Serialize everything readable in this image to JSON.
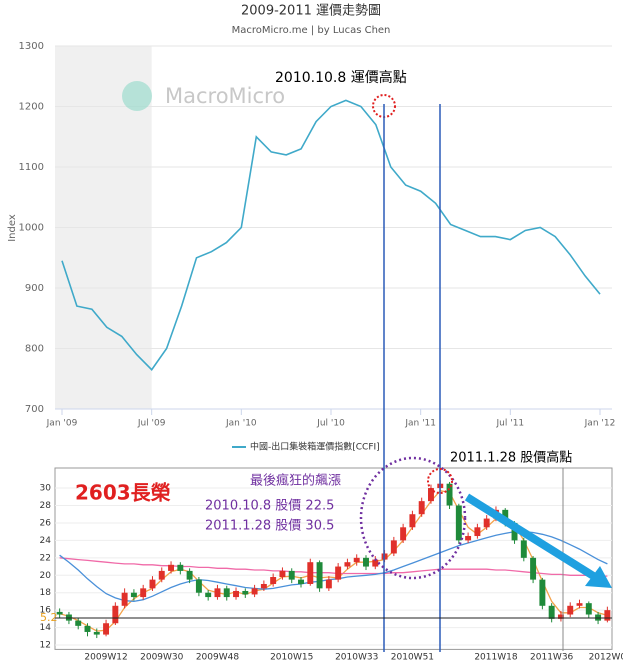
{
  "chart_data": [
    {
      "type": "line",
      "title": "2009-2011 運價走勢圖",
      "subtitle": "MacroMicro.me | by Lucas Chen",
      "watermark": "MacroMicro",
      "y_label": "Index",
      "annotation": "2010.10.8 運價高點",
      "x": [
        "2009-01",
        "2009-02",
        "2009-03",
        "2009-04",
        "2009-05",
        "2009-06",
        "2009-07",
        "2009-08",
        "2009-09",
        "2009-10",
        "2009-11",
        "2009-12",
        "2010-01",
        "2010-02",
        "2010-03",
        "2010-04",
        "2010-05",
        "2010-06",
        "2010-07",
        "2010-08",
        "2010-09",
        "2010-10",
        "2010-11",
        "2010-12",
        "2011-01",
        "2011-02",
        "2011-03",
        "2011-04",
        "2011-05",
        "2011-06",
        "2011-07",
        "2011-08",
        "2011-09",
        "2011-10",
        "2011-11",
        "2011-12",
        "2012-01"
      ],
      "series": [
        {
          "name": "中國-出口集裝箱運價指數[CCFI]",
          "color": "#3fa9c9",
          "values": [
            945,
            870,
            865,
            835,
            820,
            790,
            765,
            800,
            870,
            950,
            960,
            975,
            1000,
            1150,
            1125,
            1120,
            1130,
            1175,
            1200,
            1210,
            1200,
            1170,
            1100,
            1070,
            1060,
            1040,
            1005,
            995,
            985,
            985,
            980,
            995,
            1000,
            985,
            955,
            920,
            890
          ]
        }
      ],
      "xlim": [
        "2009-01",
        "2012-01"
      ],
      "xticks": [
        {
          "value": "2009-01",
          "label": "Jan '09"
        },
        {
          "value": "2009-07",
          "label": "Jul '09"
        },
        {
          "value": "2010-01",
          "label": "Jan '10"
        },
        {
          "value": "2010-07",
          "label": "Jul '10"
        },
        {
          "value": "2011-01",
          "label": "Jan '11"
        },
        {
          "value": "2011-07",
          "label": "Jul '11"
        },
        {
          "value": "2012-01",
          "label": "Jan '12"
        }
      ],
      "ylim": [
        700,
        1300
      ],
      "yticks": [
        700,
        800,
        900,
        1000,
        1100,
        1200,
        1300
      ],
      "grid": true,
      "plot_band": {
        "from": "2009-01",
        "to": "2009-07",
        "color": "#f0f0f0"
      },
      "legend": "bottom"
    },
    {
      "type": "candlestick",
      "title": "2603長榮",
      "annotations": [
        "最後瘋狂的飆漲",
        "2010.10.8 股價 22.5",
        "2011.1.28 股價 30.5",
        "2011.1.28 股價高點"
      ],
      "ref_label": "5.2",
      "categories": [
        null,
        null,
        null,
        null,
        null,
        "2009W12",
        null,
        null,
        null,
        null,
        null,
        "2009W30",
        null,
        null,
        null,
        null,
        null,
        "2009W48",
        null,
        null,
        null,
        null,
        null,
        null,
        null,
        "2010W15",
        null,
        null,
        null,
        null,
        null,
        null,
        "2010W33",
        null,
        null,
        null,
        null,
        null,
        "2010W51",
        null,
        null,
        null,
        null,
        null,
        null,
        null,
        null,
        "2011W18",
        null,
        null,
        null,
        null,
        null,
        "2011W36",
        null,
        null,
        null,
        null,
        null,
        "2012W0"
      ],
      "open": [
        15.8,
        15.5,
        14.8,
        14.2,
        13.5,
        13.2,
        14.5,
        16.5,
        18.0,
        17.5,
        18.5,
        19.5,
        20.5,
        21.2,
        20.5,
        19.5,
        18.0,
        17.5,
        18.5,
        17.5,
        18.2,
        17.8,
        18.5,
        19.0,
        19.8,
        20.5,
        19.5,
        19.0,
        21.5,
        18.5,
        19.5,
        21.0,
        21.5,
        22.0,
        21.0,
        21.8,
        22.5,
        24.0,
        25.5,
        27.0,
        28.5,
        30.0,
        30.5,
        28.0,
        24.0,
        24.5,
        25.5,
        26.5,
        27.5,
        26.0,
        24.0,
        22.0,
        19.5,
        16.5,
        15.0,
        15.5,
        16.5,
        16.8,
        15.5,
        14.8
      ],
      "high": [
        16.2,
        15.8,
        15.1,
        14.5,
        13.9,
        14.9,
        16.9,
        18.5,
        18.4,
        18.9,
        19.9,
        20.9,
        21.6,
        21.5,
        20.8,
        19.8,
        18.3,
        18.9,
        18.8,
        18.6,
        18.5,
        18.9,
        19.4,
        20.2,
        20.9,
        20.8,
        19.8,
        21.9,
        21.7,
        19.9,
        21.4,
        21.9,
        22.4,
        22.3,
        22.2,
        22.9,
        24.4,
        25.9,
        27.4,
        28.9,
        30.4,
        30.9,
        30.7,
        28.2,
        24.9,
        25.9,
        26.9,
        27.9,
        27.7,
        26.2,
        24.3,
        22.2,
        19.7,
        16.8,
        15.9,
        16.9,
        17.2,
        17.0,
        15.8,
        16.4
      ],
      "low": [
        15.1,
        14.4,
        13.8,
        13.0,
        12.8,
        13.0,
        14.3,
        16.2,
        17.1,
        17.2,
        18.2,
        19.2,
        20.2,
        20.1,
        19.1,
        17.6,
        17.1,
        17.2,
        17.1,
        17.2,
        17.4,
        17.5,
        18.2,
        18.7,
        19.5,
        19.1,
        18.6,
        18.8,
        18.1,
        18.2,
        19.2,
        20.7,
        21.1,
        20.6,
        20.7,
        21.5,
        22.2,
        23.7,
        25.2,
        26.7,
        28.2,
        29.6,
        27.6,
        23.6,
        23.7,
        24.2,
        25.2,
        26.2,
        25.6,
        23.6,
        21.6,
        19.1,
        16.1,
        14.6,
        14.7,
        15.2,
        16.2,
        15.1,
        14.4,
        14.6
      ],
      "close": [
        15.5,
        14.8,
        14.2,
        13.5,
        13.2,
        14.5,
        16.5,
        18.0,
        17.5,
        18.5,
        19.5,
        20.5,
        21.2,
        20.5,
        19.5,
        18.0,
        17.5,
        18.5,
        17.5,
        18.2,
        17.8,
        18.5,
        19.0,
        19.8,
        20.5,
        19.5,
        19.0,
        21.5,
        18.5,
        19.5,
        21.0,
        21.5,
        22.0,
        21.0,
        21.8,
        22.5,
        24.0,
        25.5,
        27.0,
        28.5,
        30.0,
        30.5,
        28.0,
        24.0,
        24.5,
        25.5,
        26.5,
        27.5,
        26.0,
        24.0,
        22.0,
        19.5,
        16.5,
        15.0,
        15.5,
        16.5,
        16.8,
        15.5,
        14.8,
        16.0
      ],
      "up_color": "#e0302a",
      "down_color": "#1f8a3a",
      "series": [
        {
          "color": "#f4a24a",
          "values": [
            15.6,
            15.3,
            14.8,
            14.2,
            13.6,
            13.7,
            14.7,
            16.3,
            17.3,
            18.0,
            18.5,
            19.5,
            20.4,
            20.7,
            20.4,
            19.3,
            18.3,
            18.0,
            17.8,
            18.1,
            17.8,
            18.2,
            18.4,
            19.1,
            19.8,
            19.9,
            19.7,
            20.0,
            19.7,
            19.8,
            19.7,
            20.7,
            21.5,
            21.5,
            21.6,
            21.8,
            22.8,
            24.0,
            25.5,
            27.0,
            28.5,
            29.7,
            29.5,
            27.5,
            25.5,
            24.7,
            25.5,
            26.5,
            26.7,
            25.8,
            24.0,
            21.8,
            19.3,
            17.0,
            15.7,
            15.7,
            16.3,
            16.3,
            15.7,
            15.4
          ]
        },
        {
          "color": "#f06aa8",
          "values": [
            22.0,
            21.9,
            21.8,
            21.7,
            21.6,
            21.5,
            21.4,
            21.3,
            21.3,
            21.2,
            21.2,
            21.1,
            21.1,
            21.0,
            21.0,
            20.9,
            20.9,
            20.8,
            20.8,
            20.7,
            20.7,
            20.6,
            20.6,
            20.5,
            20.5,
            20.4,
            20.4,
            20.3,
            20.3,
            20.3,
            20.2,
            20.2,
            20.2,
            20.2,
            20.2,
            20.2,
            20.3,
            20.3,
            20.4,
            20.5,
            20.6,
            20.7,
            20.7,
            20.7,
            20.7,
            20.7,
            20.7,
            20.6,
            20.6,
            20.5,
            20.4,
            20.3,
            20.2,
            20.1,
            20.1,
            20.0,
            20.0,
            20.0,
            19.9,
            19.9
          ]
        },
        {
          "color": "#4a90d9",
          "values": [
            22.3,
            21.5,
            20.6,
            19.6,
            18.7,
            17.9,
            17.4,
            17.1,
            17.0,
            17.2,
            17.6,
            18.1,
            18.6,
            19.0,
            19.3,
            19.5,
            19.4,
            19.2,
            19.0,
            18.8,
            18.6,
            18.5,
            18.4,
            18.5,
            18.7,
            18.9,
            19.0,
            19.2,
            19.3,
            19.5,
            19.6,
            19.8,
            19.9,
            20.0,
            20.1,
            20.3,
            20.6,
            21.0,
            21.4,
            21.8,
            22.2,
            22.6,
            23.0,
            23.4,
            23.7,
            24.0,
            24.3,
            24.6,
            24.8,
            25.0,
            25.0,
            24.9,
            24.7,
            24.4,
            24.0,
            23.5,
            23.0,
            22.4,
            21.8,
            21.3
          ]
        }
      ],
      "ylim": [
        11.5,
        32.3
      ],
      "yticks": [
        12,
        14,
        16,
        18,
        20,
        22,
        24,
        26,
        28,
        30
      ],
      "grid": true
    }
  ]
}
